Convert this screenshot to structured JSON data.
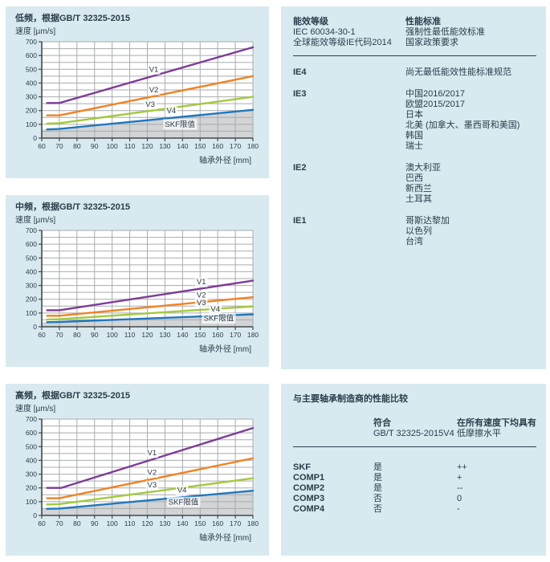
{
  "colors": {
    "panel_bg": "#d8eaf0",
    "text": "#2b3c4a",
    "grid": "#a8abad",
    "axis": "#43494d",
    "area_gray": "#d2d4d6",
    "series": {
      "V1": "#7d3c96",
      "V2": "#f08223",
      "V3": "#a3c940",
      "V4": "#2077bd"
    }
  },
  "chart_data": [
    {
      "type": "line",
      "title": "低频，根据GB/T 32325-2015",
      "ylabel": "速度 [µm/s]",
      "xlabel": "轴承外径 [mm]",
      "xlim": [
        60,
        180
      ],
      "ylim": [
        0,
        700
      ],
      "xtick_step": 10,
      "ytick_step": 100,
      "grid_y_step": 50,
      "grid": "on",
      "legend": "inline-labels",
      "series": [
        {
          "name": "V1",
          "points": [
            [
              63,
              255
            ],
            [
              70,
              255
            ],
            [
              180,
              660
            ]
          ],
          "label_xy": [
            121,
            482
          ]
        },
        {
          "name": "V2",
          "points": [
            [
              63,
              165
            ],
            [
              70,
              165
            ],
            [
              180,
              450
            ]
          ],
          "label_xy": [
            121,
            332
          ]
        },
        {
          "name": "V3",
          "points": [
            [
              63,
              105
            ],
            [
              70,
              108
            ],
            [
              180,
              300
            ]
          ],
          "label_xy": [
            119,
            228
          ]
        },
        {
          "name": "V4",
          "points": [
            [
              63,
              63
            ],
            [
              70,
              67
            ],
            [
              180,
              205
            ]
          ],
          "label_xy": [
            131,
            180
          ]
        }
      ],
      "skf_area": {
        "label": "SKF限值",
        "boundary_series": "V4",
        "label_xy": [
          130,
          82
        ]
      }
    },
    {
      "type": "line",
      "title": "中频，根据GB/T 32325-2015",
      "ylabel": "速度 [µm/s]",
      "xlabel": "轴承外径 [mm]",
      "xlim": [
        60,
        180
      ],
      "ylim": [
        0,
        700
      ],
      "xtick_step": 10,
      "ytick_step": 100,
      "grid_y_step": 50,
      "grid": "on",
      "legend": "inline-labels",
      "series": [
        {
          "name": "V1",
          "points": [
            [
              63,
              120
            ],
            [
              70,
              120
            ],
            [
              180,
              335
            ]
          ],
          "label_xy": [
            148,
            308
          ]
        },
        {
          "name": "V2",
          "points": [
            [
              63,
              80
            ],
            [
              70,
              80
            ],
            [
              180,
              215
            ]
          ],
          "label_xy": [
            148,
            212
          ]
        },
        {
          "name": "V3",
          "points": [
            [
              63,
              52
            ],
            [
              70,
              55
            ],
            [
              180,
              148
            ]
          ],
          "label_xy": [
            148,
            158
          ]
        },
        {
          "name": "V4",
          "points": [
            [
              63,
              33
            ],
            [
              70,
              35
            ],
            [
              180,
              90
            ]
          ],
          "label_xy": [
            156,
            112
          ]
        }
      ],
      "skf_area": {
        "label": "SKF限值",
        "boundary_series": "V4",
        "label_xy": [
          152,
          44
        ]
      }
    },
    {
      "type": "line",
      "title": "高频，根据GB/T 32325-2015",
      "ylabel": "速度 [µm/s]",
      "xlabel": "轴承外径 [mm]",
      "xlim": [
        60,
        180
      ],
      "ylim": [
        0,
        700
      ],
      "xtick_step": 10,
      "ytick_step": 100,
      "grid_y_step": 50,
      "grid": "on",
      "legend": "inline-labels",
      "series": [
        {
          "name": "V1",
          "points": [
            [
              63,
              200
            ],
            [
              71,
              200
            ],
            [
              180,
              635
            ]
          ],
          "label_xy": [
            120,
            438
          ]
        },
        {
          "name": "V2",
          "points": [
            [
              63,
              125
            ],
            [
              70,
              125
            ],
            [
              180,
              415
            ]
          ],
          "label_xy": [
            120,
            295
          ]
        },
        {
          "name": "V3",
          "points": [
            [
              63,
              80
            ],
            [
              70,
              82
            ],
            [
              180,
              270
            ]
          ],
          "label_xy": [
            120,
            203
          ]
        },
        {
          "name": "V4",
          "points": [
            [
              63,
              48
            ],
            [
              70,
              50
            ],
            [
              180,
              180
            ]
          ],
          "label_xy": [
            137,
            166
          ]
        }
      ],
      "skf_area": {
        "label": "SKF限值",
        "boundary_series": "V4",
        "label_xy": [
          132,
          80
        ]
      }
    }
  ],
  "ie_panel": {
    "col1_header": [
      "能效等级",
      "IEC 60034-30-1",
      "全球能效等级IE代码2014"
    ],
    "col2_header": [
      "性能标准",
      "强制性最低能效标准",
      "国家政策要求"
    ],
    "rows": [
      {
        "grade": "IE4",
        "items": [
          "尚无最低能效性能标准规范"
        ]
      },
      {
        "grade": "IE3",
        "items": [
          "中国2016/2017",
          "欧盟2015/2017",
          "日本",
          "北美 (加拿大、墨西哥和美国)",
          "韩国",
          "瑞士"
        ]
      },
      {
        "grade": "IE2",
        "items": [
          "澳大利亚",
          "巴西",
          "新西兰",
          "土耳其"
        ]
      },
      {
        "grade": "IE1",
        "items": [
          "哥斯达黎加",
          "以色列",
          "台湾"
        ]
      }
    ]
  },
  "comparison_panel": {
    "title": "与主要轴承制造商的性能比较",
    "col2_header": [
      "符合",
      "GB/T 32325-2015V4"
    ],
    "col3_header": [
      "在所有速度下均具有",
      "低摩擦水平"
    ],
    "rows": [
      {
        "name": "SKF",
        "compliant": "是",
        "friction": "++"
      },
      {
        "name": "COMP1",
        "compliant": "是",
        "friction": "+"
      },
      {
        "name": "COMP2",
        "compliant": "是",
        "friction": "--"
      },
      {
        "name": "COMP3",
        "compliant": "否",
        "friction": "0"
      },
      {
        "name": "COMP4",
        "compliant": "否",
        "friction": "-"
      }
    ]
  }
}
